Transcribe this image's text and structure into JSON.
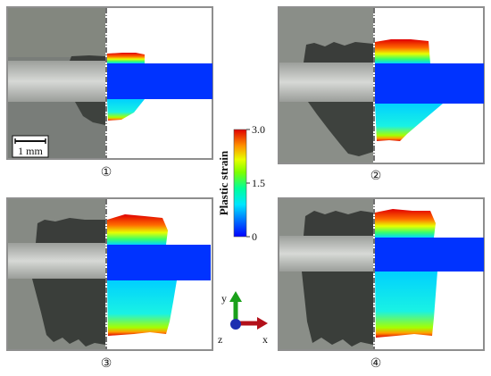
{
  "panels": [
    {
      "id": "p1",
      "label": "①"
    },
    {
      "id": "p2",
      "label": "②"
    },
    {
      "id": "p3",
      "label": "③"
    },
    {
      "id": "p4",
      "label": "④"
    }
  ],
  "scalebar": {
    "label": "1 mm"
  },
  "colorbar": {
    "title": "Plastic strain",
    "ticks": [
      "3.0",
      "1.5",
      "0"
    ],
    "min": 0,
    "max": 3.0,
    "colors": [
      "#0000ff",
      "#00a0ff",
      "#00e6ff",
      "#00ff9a",
      "#7cff00",
      "#e8ff00",
      "#ffb000",
      "#ff3000",
      "#e00000"
    ]
  },
  "axes": {
    "y": "y",
    "x": "x",
    "z": "z"
  },
  "colors": {
    "axis_y": "#1aa01a",
    "axis_x": "#b3101a",
    "axis_z": "#1e2fb0",
    "bar_blue": "#0033ff"
  }
}
